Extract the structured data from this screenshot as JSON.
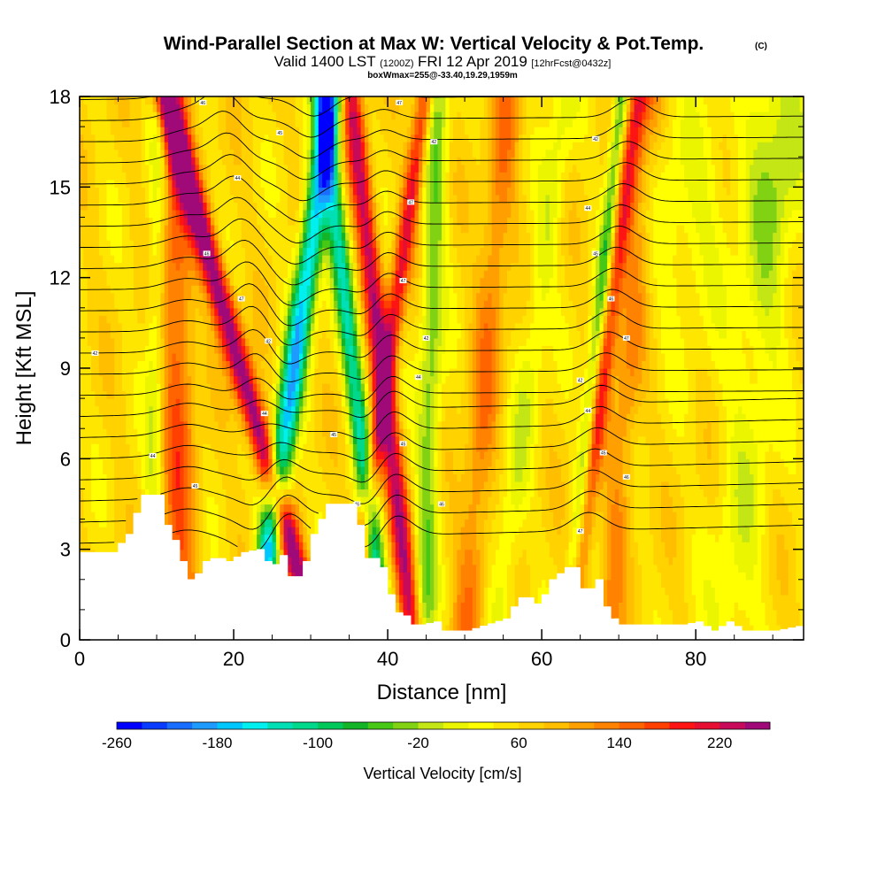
{
  "chart_data": {
    "type": "heatmap",
    "title": {
      "main": "Wind-Parallel Section at Max W: Vertical Velocity & Pot.Temp.",
      "main_suffix": "(C)",
      "line2_a": "Valid 1400 LST",
      "line2_b": "(1200Z)",
      "line2_c": "FRI 12 Apr 2019",
      "line2_d": "[12hrFcst@0432z]",
      "line3": "boxWmax=255@-33.40,19.29,1959m"
    },
    "xlabel": "Distance [nm]",
    "ylabel": "Height [Kft MSL]",
    "xlim": [
      0,
      94
    ],
    "ylim": [
      0,
      18
    ],
    "xticks": [
      "0",
      "20",
      "40",
      "60",
      "80"
    ],
    "yticks": [
      "0",
      "3",
      "6",
      "9",
      "12",
      "15",
      "18"
    ],
    "colorbar": {
      "label": "Vertical Velocity [cm/s]",
      "min": -280,
      "max": 240,
      "step": 20,
      "tick_labels": [
        "-260",
        "-180",
        "-100",
        "-20",
        "60",
        "140",
        "220"
      ],
      "colors": [
        "#0000ff",
        "#0a3cff",
        "#1a6eff",
        "#1e9bff",
        "#00c8ff",
        "#00f0f0",
        "#00e0b4",
        "#00d88c",
        "#00c85a",
        "#14b428",
        "#46c814",
        "#82d214",
        "#c3e614",
        "#ebf500",
        "#ffff00",
        "#ffe600",
        "#ffd200",
        "#ffbe00",
        "#ffa000",
        "#ff8200",
        "#ff6400",
        "#ff4000",
        "#ff1414",
        "#e60f32",
        "#c80a5a",
        "#a00a78"
      ]
    },
    "updraft_bands": [
      {
        "x_base": 27.5,
        "slope": -1.1,
        "amp": 210,
        "width": 1.6
      },
      {
        "x_base": 36.6,
        "slope": 0.55,
        "amp": 140,
        "width": 1.2
      },
      {
        "x_base": 42.0,
        "slope": -0.45,
        "amp": 165,
        "width": 1.4
      },
      {
        "x_base": 65.0,
        "slope": 0.5,
        "amp": 130,
        "width": 1.3
      },
      {
        "x_base": 13.0,
        "slope": -0.05,
        "amp": 95,
        "width": 2.2
      },
      {
        "x_base": 51.0,
        "slope": 0.3,
        "amp": 70,
        "width": 2.0
      },
      {
        "x_base": 69.5,
        "slope": 0.3,
        "amp": 60,
        "width": 1.8
      }
    ],
    "downdraft_bands": [
      {
        "x_base": 24.5,
        "slope": 0.55,
        "amp": -230,
        "width": 1.6
      },
      {
        "x_base": 38.2,
        "slope": -0.45,
        "amp": -170,
        "width": 1.3
      },
      {
        "x_base": 45.0,
        "slope": 0.1,
        "amp": -90,
        "width": 1.5
      },
      {
        "x_base": 64.4,
        "slope": 0.4,
        "amp": -120,
        "width": 1.0
      },
      {
        "x_base": 9.5,
        "slope": 0.05,
        "amp": -60,
        "width": 1.2
      },
      {
        "x_base": 55.5,
        "slope": 0.5,
        "amp": -50,
        "width": 1.8
      },
      {
        "x_base": 85.5,
        "slope": 0.4,
        "amp": -45,
        "width": 3.5
      }
    ],
    "terrain": {
      "x": [
        0,
        4,
        6,
        7,
        8,
        10,
        11,
        12,
        13,
        14,
        15,
        16,
        17,
        18,
        19,
        21,
        23,
        24,
        25,
        26,
        27,
        28,
        29,
        30,
        31,
        32,
        35,
        36,
        37,
        38,
        39,
        40,
        41,
        42,
        43,
        44,
        46,
        47,
        48,
        50,
        55,
        56,
        57,
        58,
        59,
        60,
        61,
        62,
        63,
        64,
        65,
        66,
        67,
        68,
        69,
        70,
        78,
        80,
        82,
        84,
        86,
        88,
        90,
        94
      ],
      "height": [
        2.9,
        2.9,
        3.5,
        4.2,
        4.8,
        4.8,
        3.8,
        3.3,
        2.6,
        2.0,
        2.2,
        2.6,
        2.7,
        2.7,
        2.6,
        2.9,
        3.0,
        2.6,
        2.5,
        2.8,
        2.1,
        2.1,
        2.6,
        3.5,
        4.0,
        4.5,
        4.5,
        3.8,
        2.7,
        2.7,
        2.4,
        1.5,
        0.9,
        0.8,
        0.5,
        0.5,
        0.6,
        0.3,
        0.3,
        0.3,
        0.7,
        1.1,
        1.4,
        1.4,
        1.2,
        1.5,
        2.0,
        2.2,
        2.4,
        2.4,
        1.7,
        1.7,
        2.0,
        1.1,
        0.7,
        0.5,
        0.5,
        0.6,
        0.3,
        0.6,
        0.3,
        0.3,
        0.3,
        0.5
      ]
    },
    "theta_contour_labels": [
      "42",
      "44",
      "45",
      "46",
      "47"
    ]
  }
}
